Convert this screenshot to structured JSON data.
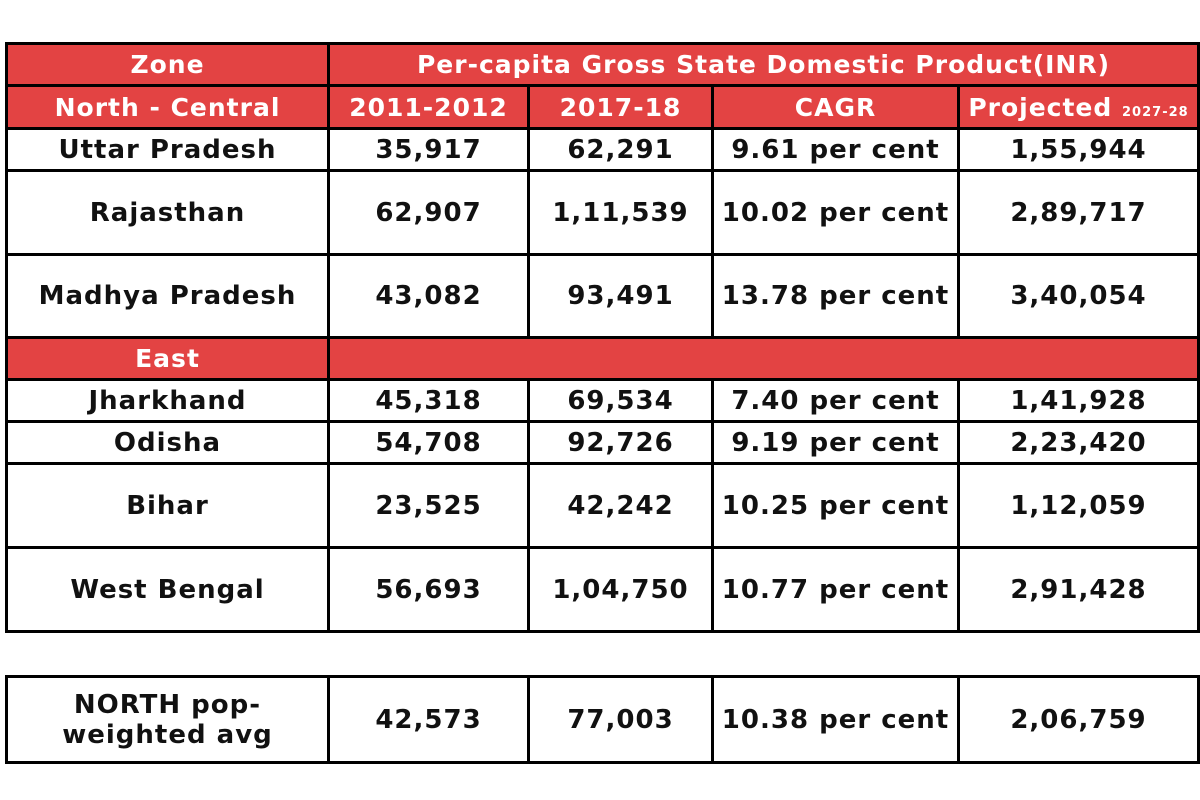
{
  "chart_data": {
    "type": "table",
    "header": {
      "zone_label": "Zone",
      "metric_label": "Per-capita Gross State Domestic Product(INR)",
      "group_label": "North - Central",
      "columns": [
        "2011-2012",
        "2017-18",
        "CAGR",
        "Projected"
      ],
      "projected_year": "2027-28"
    },
    "north_central": [
      {
        "state": "Uttar Pradesh",
        "v2011": "35,917",
        "v2017": "62,291",
        "cagr": "9.61 per cent",
        "projected": "1,55,944"
      },
      {
        "state": "Rajasthan",
        "v2011": "62,907",
        "v2017": "1,11,539",
        "cagr": "10.02 per cent",
        "projected": "2,89,717"
      },
      {
        "state": "Madhya Pradesh",
        "v2011": "43,082",
        "v2017": "93,491",
        "cagr": "13.78 per cent",
        "projected": "3,40,054"
      }
    ],
    "east_label": "East",
    "east": [
      {
        "state": "Jharkhand",
        "v2011": "45,318",
        "v2017": "69,534",
        "cagr": "7.40 per cent",
        "projected": "1,41,928"
      },
      {
        "state": "Odisha",
        "v2011": "54,708",
        "v2017": "92,726",
        "cagr": "9.19 per cent",
        "projected": "2,23,420"
      },
      {
        "state": "Bihar",
        "v2011": "23,525",
        "v2017": "42,242",
        "cagr": "10.25 per cent",
        "projected": "1,12,059"
      },
      {
        "state": "West Bengal",
        "v2011": "56,693",
        "v2017": "1,04,750",
        "cagr": "10.77 per cent",
        "projected": "2,91,428"
      }
    ],
    "north_avg": {
      "state": "NORTH pop- weighted avg",
      "v2011": "42,573",
      "v2017": "77,003",
      "cagr": "10.38 per cent",
      "projected": "2,06,759"
    }
  },
  "colors": {
    "header_bg": "#e34343",
    "header_text": "#ffffff",
    "border": "#000000",
    "body_text": "#111111"
  }
}
